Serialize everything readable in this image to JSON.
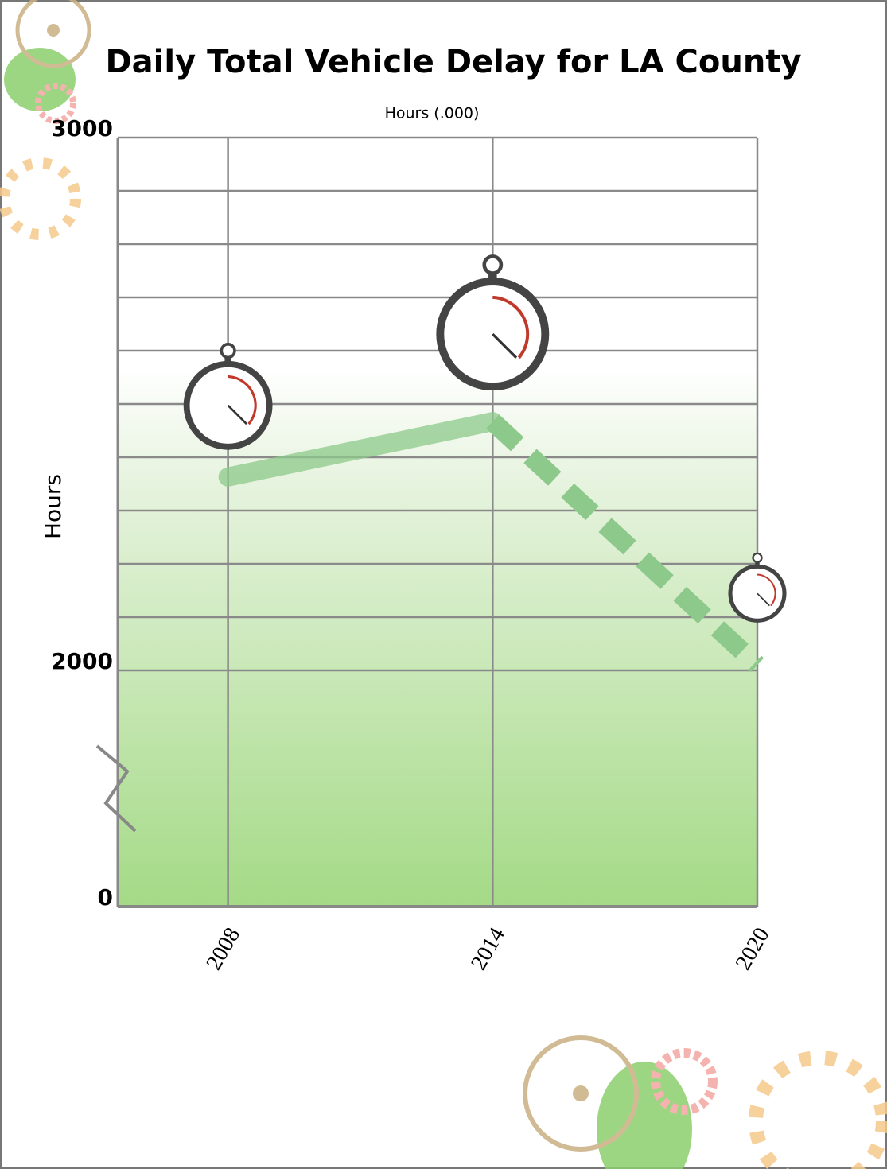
{
  "chart_data": {
    "type": "line",
    "title": "Daily Total Vehicle Delay for LA County",
    "subtitle": "Hours (.000)",
    "y_label": "Hours",
    "x": [
      2008,
      2014,
      2020
    ],
    "series": [
      {
        "color": "#8cc98a",
        "values": [
          2363,
          2467,
          2010
        ]
      }
    ],
    "segment_styles": [
      "solid",
      "dashed"
    ],
    "xlim": [
      2005.5,
      2020
    ],
    "xticks": [
      2008,
      2014,
      2020
    ],
    "ylim": [
      0,
      3000
    ],
    "yticks": [
      0,
      2000,
      3000
    ],
    "y_break": [
      0,
      2000
    ],
    "grid_step": 100,
    "grid": true
  }
}
